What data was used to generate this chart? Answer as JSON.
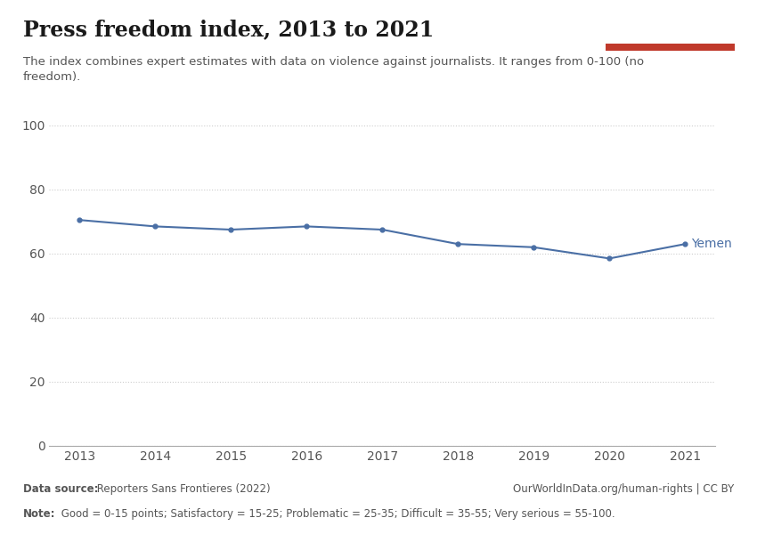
{
  "title": "Press freedom index, 2013 to 2021",
  "subtitle": "The index combines expert estimates with data on violence against journalists. It ranges from 0-100 (no\nfreedom).",
  "data_source_bold": "Data source:",
  "data_source_normal": " Reporters Sans Frontieres (2022)",
  "url": "OurWorldInData.org/human-rights | CC BY",
  "note_bold": "Note:",
  "note_normal": " Good = 0-15 points; Satisfactory = 15-25; Problematic = 25-35; Difficult = 35-55; Very serious = 55-100.",
  "years": [
    2013,
    2014,
    2015,
    2016,
    2017,
    2018,
    2019,
    2020,
    2021
  ],
  "values": [
    70.5,
    68.5,
    67.5,
    68.5,
    67.5,
    63.0,
    62.0,
    58.5,
    63.0
  ],
  "line_color": "#4a6fa5",
  "label": "Yemen",
  "background_color": "#ffffff",
  "grid_color": "#cccccc",
  "title_color": "#1a1a1a",
  "subtitle_color": "#555555",
  "footer_color": "#555555",
  "logo_bg": "#1a3a5c",
  "logo_red": "#c0392b",
  "ylim": [
    0,
    100
  ],
  "yticks": [
    0,
    20,
    40,
    60,
    80,
    100
  ],
  "title_fontsize": 17,
  "subtitle_fontsize": 9.5,
  "tick_fontsize": 10,
  "footer_fontsize": 8.5,
  "label_fontsize": 10
}
